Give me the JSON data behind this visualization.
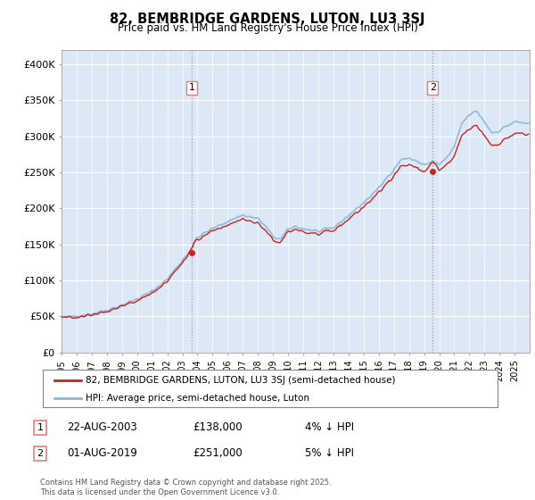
{
  "title": "82, BEMBRIDGE GARDENS, LUTON, LU3 3SJ",
  "subtitle": "Price paid vs. HM Land Registry's House Price Index (HPI)",
  "ylim": [
    0,
    420000
  ],
  "yticks": [
    0,
    50000,
    100000,
    150000,
    200000,
    250000,
    300000,
    350000,
    400000
  ],
  "ytick_labels": [
    "£0",
    "£50K",
    "£100K",
    "£150K",
    "£200K",
    "£250K",
    "£300K",
    "£350K",
    "£400K"
  ],
  "fig_bg_color": "#ffffff",
  "plot_bg_color": "#dce8f5",
  "grid_color": "#ffffff",
  "hpi_color": "#8ab4d8",
  "price_color": "#cc2222",
  "dashed_color": "#e08080",
  "sale1_date": "22-AUG-2003",
  "sale1_price": 138000,
  "sale1_hpi_diff": "4% ↓ HPI",
  "sale2_date": "01-AUG-2019",
  "sale2_price": 251000,
  "sale2_hpi_diff": "5% ↓ HPI",
  "legend_line1": "82, BEMBRIDGE GARDENS, LUTON, LU3 3SJ (semi-detached house)",
  "legend_line2": "HPI: Average price, semi-detached house, Luton",
  "footer": "Contains HM Land Registry data © Crown copyright and database right 2025.\nThis data is licensed under the Open Government Licence v3.0.",
  "sale1_year": 2003.625,
  "sale2_year": 2019.583
}
